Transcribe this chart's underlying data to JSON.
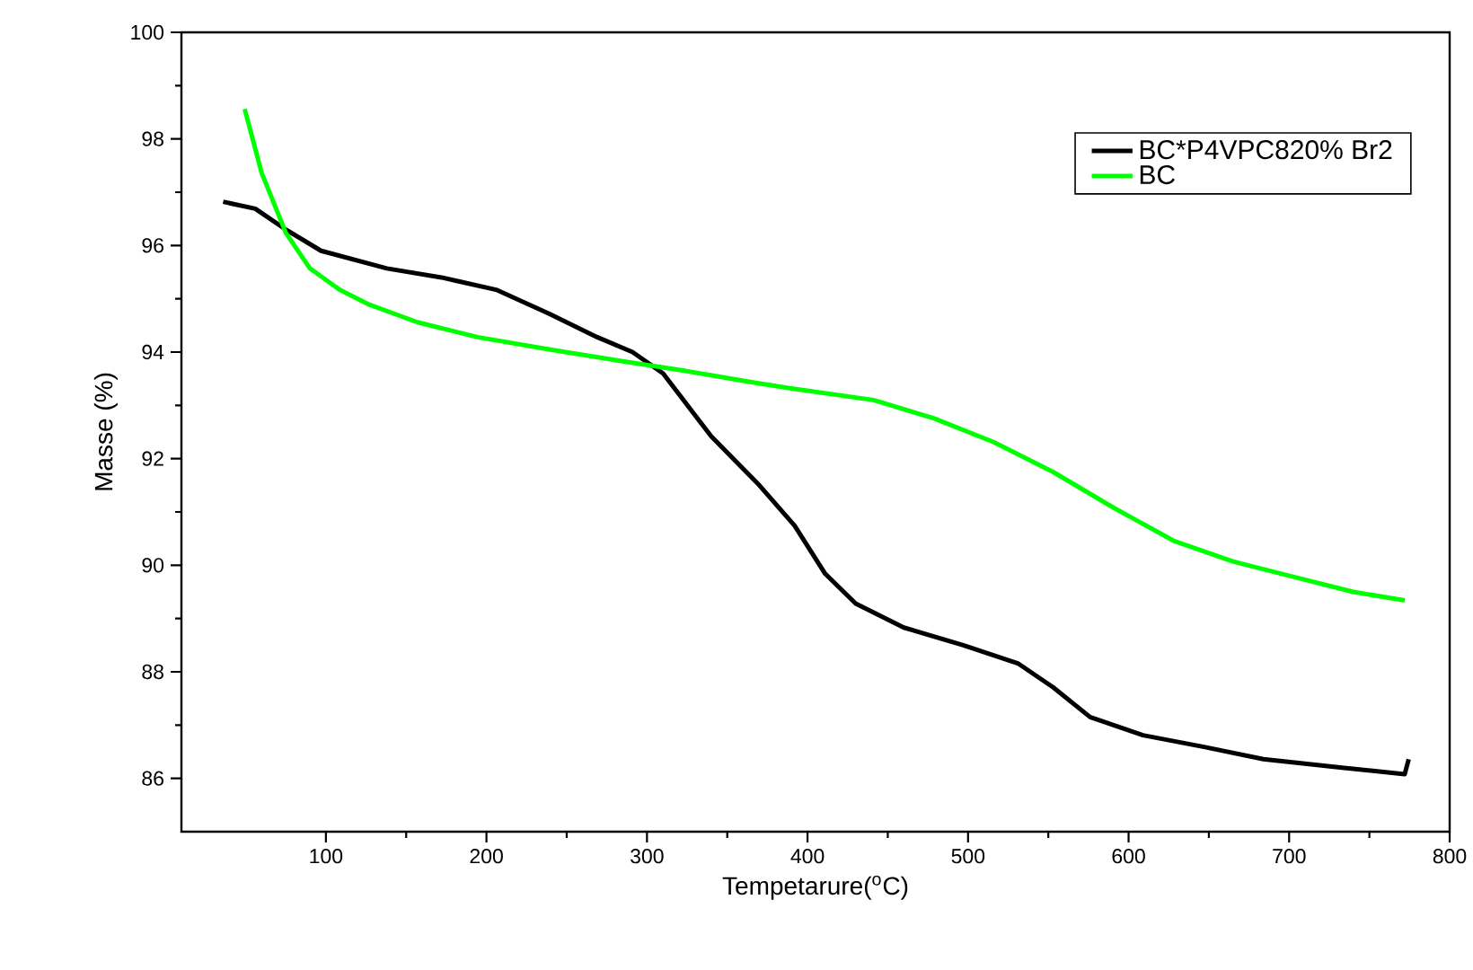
{
  "chart_data": {
    "type": "line",
    "xlabel": "Tempetarure($^{o}$C)",
    "ylabel": "Masse (%)",
    "xlim": [
      10,
      800
    ],
    "ylim": [
      85,
      100
    ],
    "xticks": [
      100,
      200,
      300,
      400,
      500,
      600,
      700,
      800
    ],
    "yticks": [
      86,
      88,
      90,
      92,
      94,
      96,
      98,
      100
    ],
    "legend": "top right",
    "grid": false,
    "series": [
      {
        "name": "BC*P4VPC820% Br2",
        "color": "#000000",
        "x": [
          36,
          56,
          75,
          97,
          138,
          172,
          206,
          239,
          269,
          291,
          310,
          340,
          370,
          392,
          411,
          430,
          460,
          497,
          531,
          553,
          576,
          609,
          647,
          684,
          733,
          772,
          774.5
        ],
        "values": [
          96.82,
          96.69,
          96.3,
          95.9,
          95.57,
          95.4,
          95.17,
          94.72,
          94.28,
          94.0,
          93.6,
          92.42,
          91.5,
          90.74,
          89.84,
          89.28,
          88.83,
          88.5,
          88.16,
          87.71,
          87.15,
          86.81,
          86.59,
          86.36,
          86.2,
          86.08,
          86.36
        ]
      },
      {
        "name": "BC",
        "color": "#00ff00",
        "x": [
          49.4,
          60,
          75,
          90,
          108.5,
          127,
          157,
          194.5,
          239,
          284,
          321.5,
          366,
          389,
          441,
          478.5,
          516,
          553,
          590.6,
          628,
          665,
          703,
          740,
          772
        ],
        "values": [
          98.56,
          97.36,
          96.24,
          95.57,
          95.17,
          94.89,
          94.56,
          94.28,
          94.05,
          93.83,
          93.66,
          93.43,
          93.32,
          93.1,
          92.76,
          92.31,
          91.75,
          91.08,
          90.46,
          90.07,
          89.78,
          89.5,
          89.34
        ]
      }
    ]
  }
}
